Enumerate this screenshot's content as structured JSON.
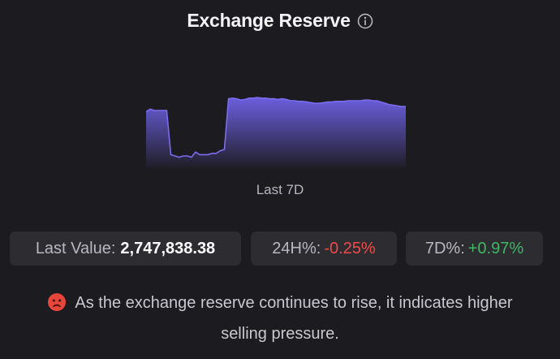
{
  "header": {
    "title": "Exchange Reserve",
    "info_icon": "info-circle-icon"
  },
  "chart_data": {
    "type": "area",
    "title": "",
    "xlabel": "",
    "ylabel": "",
    "grid": false,
    "legend": "none",
    "line_color": "#7b6cf0",
    "fill_top_color": "#6f62e8",
    "series": [
      {
        "values": [
          0.78,
          0.82,
          0.8,
          0.8,
          0.8,
          0.8,
          0.12,
          0.1,
          0.08,
          0.1,
          0.1,
          0.08,
          0.16,
          0.12,
          0.12,
          0.12,
          0.14,
          0.14,
          0.18,
          0.2,
          0.98,
          0.99,
          0.98,
          0.96,
          0.97,
          0.99,
          0.99,
          1.0,
          0.99,
          0.99,
          0.98,
          0.98,
          0.97,
          0.98,
          0.97,
          0.95,
          0.95,
          0.94,
          0.94,
          0.93,
          0.92,
          0.91,
          0.91,
          0.92,
          0.93,
          0.93,
          0.94,
          0.94,
          0.94,
          0.95,
          0.95,
          0.95,
          0.95,
          0.96,
          0.96,
          0.95,
          0.95,
          0.93,
          0.91,
          0.89,
          0.88,
          0.87,
          0.86,
          0.86
        ]
      }
    ]
  },
  "period_label": "Last 7D",
  "stats": {
    "last_value_label": "Last Value:",
    "last_value": "2,747,838.38",
    "h24_label": "24H%:",
    "h24_value": "-0.25%",
    "d7_label": "7D%:",
    "d7_value": "+0.97%"
  },
  "colors": {
    "negative": "#ef4b4b",
    "positive": "#3fb764",
    "accent": "#7b6cf0"
  },
  "message": {
    "icon": "sad-face-emoji-icon",
    "text": "As the exchange reserve continues to rise, it indicates higher selling pressure."
  }
}
